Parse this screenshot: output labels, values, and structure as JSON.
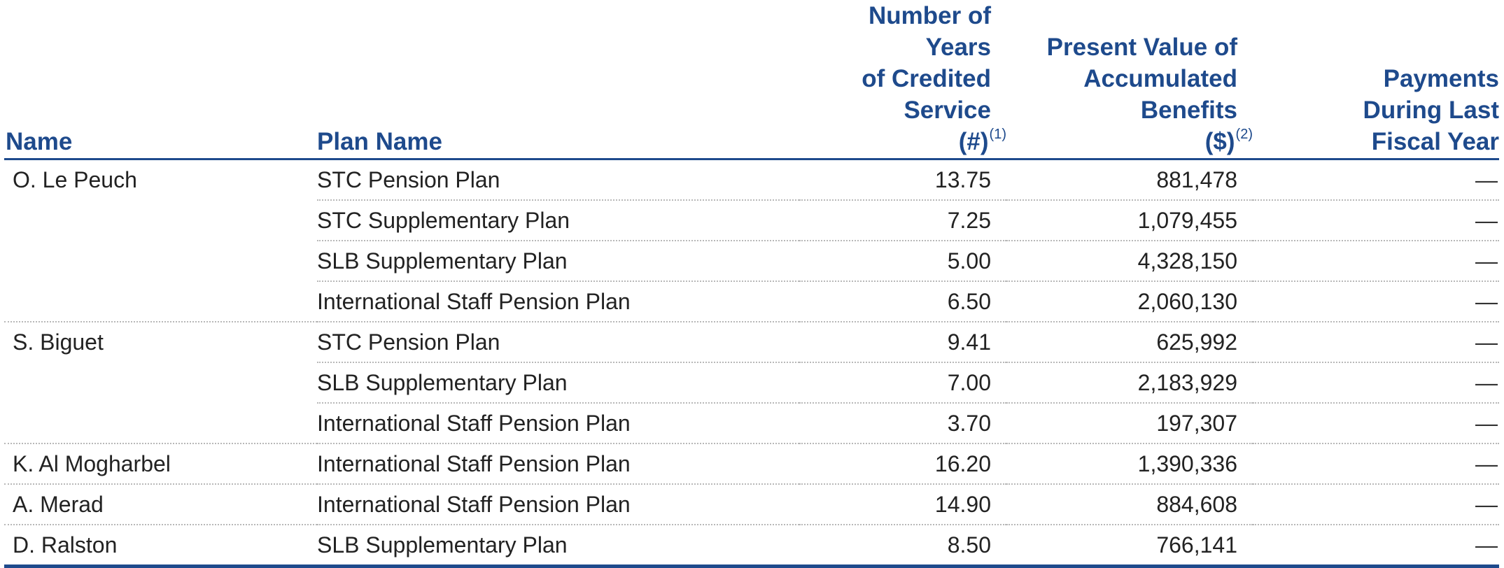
{
  "table": {
    "headers": {
      "name": "Name",
      "plan_name": "Plan Name",
      "years": "Number of Years\nof Credited\nService\n(#)",
      "years_footnote": "(1)",
      "present_value": "Present Value of\nAccumulated\nBenefits\n($)",
      "present_value_footnote": "(2)",
      "payments": "Payments\nDuring Last\nFiscal Year"
    },
    "groups": [
      {
        "name": "O. Le Peuch",
        "rows": [
          {
            "plan": "STC Pension Plan",
            "years": "13.75",
            "value": "881,478",
            "payments": "—"
          },
          {
            "plan": "STC Supplementary Plan",
            "years": "7.25",
            "value": "1,079,455",
            "payments": "—"
          },
          {
            "plan": "SLB Supplementary Plan",
            "years": "5.00",
            "value": "4,328,150",
            "payments": "—"
          },
          {
            "plan": "International Staff Pension Plan",
            "years": "6.50",
            "value": "2,060,130",
            "payments": "—"
          }
        ]
      },
      {
        "name": "S. Biguet",
        "rows": [
          {
            "plan": "STC Pension Plan",
            "years": "9.41",
            "value": "625,992",
            "payments": "—"
          },
          {
            "plan": "SLB Supplementary Plan",
            "years": "7.00",
            "value": "2,183,929",
            "payments": "—"
          },
          {
            "plan": "International Staff Pension Plan",
            "years": "3.70",
            "value": "197,307",
            "payments": "—"
          }
        ]
      },
      {
        "name": "K. Al Mogharbel",
        "rows": [
          {
            "plan": "International Staff Pension Plan",
            "years": "16.20",
            "value": "1,390,336",
            "payments": "—"
          }
        ]
      },
      {
        "name": "A. Merad",
        "rows": [
          {
            "plan": "International Staff Pension Plan",
            "years": "14.90",
            "value": "884,608",
            "payments": "—"
          }
        ]
      },
      {
        "name": "D. Ralston",
        "rows": [
          {
            "plan": "SLB Supplementary Plan",
            "years": "8.50",
            "value": "766,141",
            "payments": "—"
          }
        ]
      }
    ],
    "colors": {
      "header_text": "#1e4a8c",
      "rule": "#1e4a8c",
      "body_text": "#222222",
      "dotted_rule": "#b8b8b8"
    }
  }
}
